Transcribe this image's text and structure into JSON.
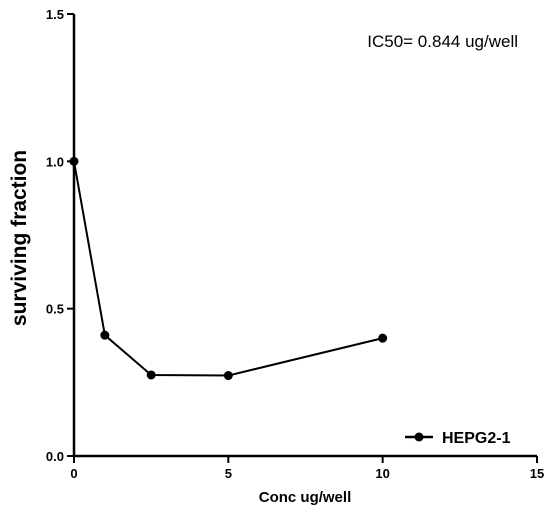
{
  "chart_data": {
    "type": "line",
    "title": "",
    "xlabel": "Conc ug/well",
    "ylabel": "surviving fraction",
    "xlim": [
      0,
      15
    ],
    "ylim": [
      0.0,
      1.5
    ],
    "x_ticks": [
      0,
      5,
      10,
      15
    ],
    "y_ticks": [
      0.0,
      0.5,
      1.0,
      1.5
    ],
    "x_tick_labels": [
      "0",
      "5",
      "10",
      "15"
    ],
    "y_tick_labels": [
      "0.0",
      "0.5",
      "1.0",
      "1.5"
    ],
    "grid": false,
    "legend_position": "bottom-right",
    "annotation": "IC50= 0.844 ug/well",
    "series": [
      {
        "name": "HEPG2-1",
        "color": "#000000",
        "marker": "circle",
        "x": [
          0,
          1,
          2.5,
          5,
          10
        ],
        "y": [
          1.0,
          0.41,
          0.275,
          0.273,
          0.4
        ]
      }
    ]
  }
}
